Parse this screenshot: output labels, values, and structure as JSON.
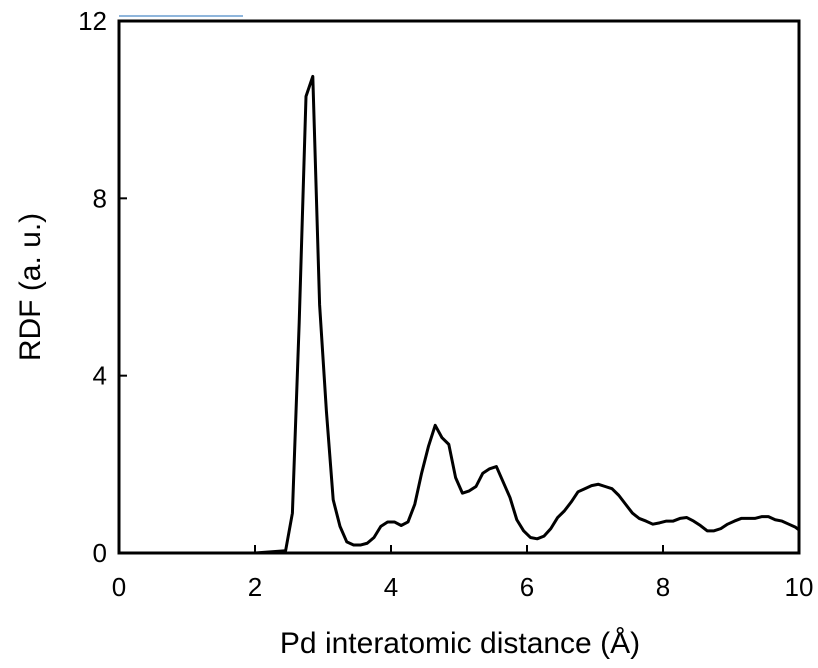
{
  "chart_data": {
    "type": "line",
    "title": "",
    "xlabel": "Pd interatomic distance (Å)",
    "ylabel": "RDF (a. u.)",
    "xlim": [
      0,
      10
    ],
    "ylim": [
      0,
      12
    ],
    "xticks": [
      "0",
      "2",
      "4",
      "6",
      "8",
      "10"
    ],
    "yticks": [
      "0",
      "4",
      "8",
      "12"
    ],
    "grid": false,
    "line_color": "#000000",
    "series": [
      {
        "x": [
          0,
          2.0,
          2.45,
          2.55,
          2.65,
          2.75,
          2.85,
          2.95,
          3.05,
          3.15,
          3.25,
          3.35,
          3.45,
          3.55,
          3.65,
          3.75,
          3.85,
          3.95,
          4.05,
          4.15,
          4.25,
          4.35,
          4.45,
          4.55,
          4.65,
          4.75,
          4.85,
          4.95,
          5.05,
          5.15,
          5.25,
          5.35,
          5.45,
          5.55,
          5.65,
          5.75,
          5.85,
          5.95,
          6.05,
          6.15,
          6.25,
          6.35,
          6.45,
          6.55,
          6.65,
          6.75,
          6.85,
          6.95,
          7.05,
          7.15,
          7.25,
          7.35,
          7.45,
          7.55,
          7.65,
          7.75,
          7.85,
          7.95,
          8.05,
          8.15,
          8.25,
          8.35,
          8.45,
          8.55,
          8.65,
          8.75,
          8.85,
          8.95,
          9.05,
          9.15,
          9.25,
          9.35,
          9.45,
          9.55,
          9.65,
          9.75,
          9.85,
          9.95,
          10.0
        ],
        "y": [
          0,
          0,
          0.05,
          0.9,
          5.2,
          10.3,
          10.75,
          5.6,
          3.2,
          1.2,
          0.6,
          0.25,
          0.18,
          0.18,
          0.22,
          0.35,
          0.6,
          0.7,
          0.7,
          0.62,
          0.7,
          1.1,
          1.8,
          2.4,
          2.88,
          2.6,
          2.45,
          1.7,
          1.35,
          1.4,
          1.5,
          1.8,
          1.9,
          1.95,
          1.6,
          1.25,
          0.75,
          0.5,
          0.35,
          0.32,
          0.38,
          0.55,
          0.8,
          0.95,
          1.15,
          1.38,
          1.45,
          1.52,
          1.55,
          1.5,
          1.45,
          1.3,
          1.1,
          0.9,
          0.78,
          0.72,
          0.65,
          0.68,
          0.72,
          0.72,
          0.78,
          0.8,
          0.72,
          0.62,
          0.5,
          0.5,
          0.55,
          0.65,
          0.72,
          0.78,
          0.78,
          0.78,
          0.82,
          0.82,
          0.75,
          0.72,
          0.65,
          0.58,
          0.52
        ]
      }
    ]
  }
}
